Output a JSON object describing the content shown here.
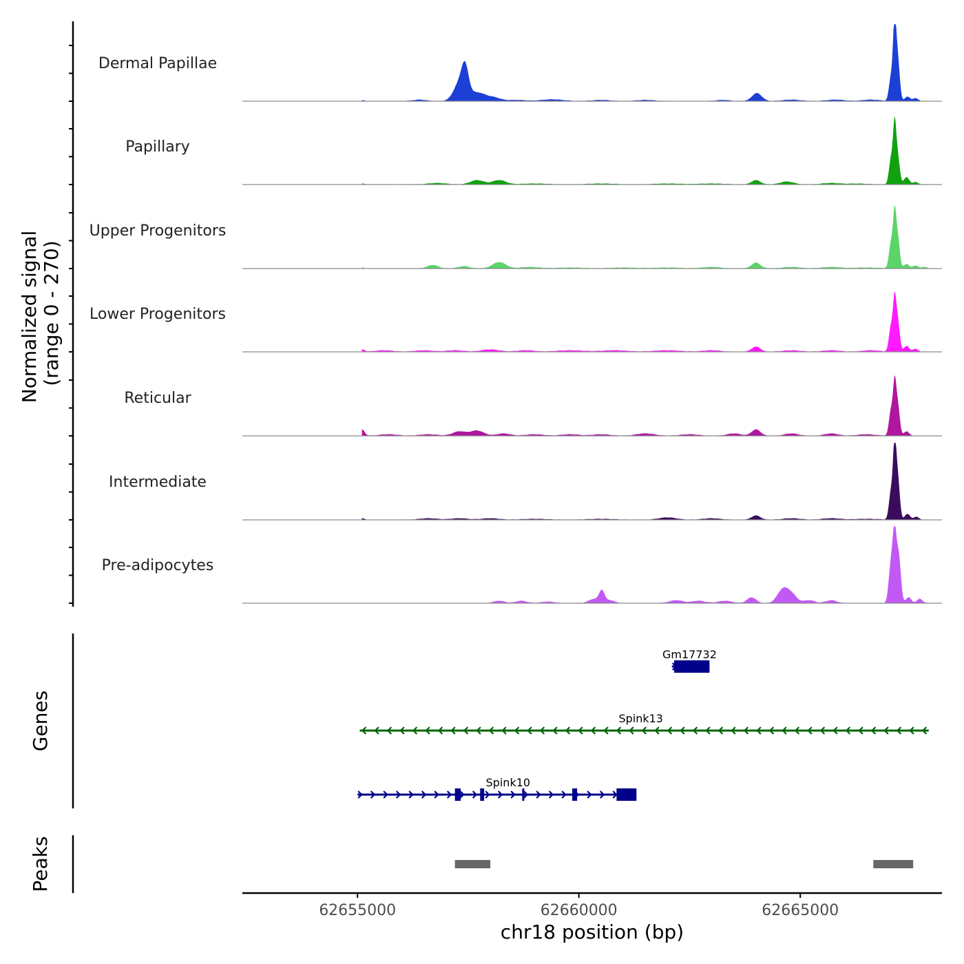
{
  "chart_data": {
    "type": "area",
    "title": "",
    "chromosome": "chr18",
    "xlabel": "chr18 position (bp)",
    "ylabel_line1": "Normalized signal",
    "ylabel_line2": "(range 0 - 270)",
    "xlim": [
      62652400,
      62668200
    ],
    "ylim": [
      0,
      270
    ],
    "x_ticks": [
      62655000,
      62660000,
      62665000
    ],
    "x_tick_labels": [
      "62655000",
      "62660000",
      "62665000"
    ],
    "tracks": [
      {
        "name": "Dermal Papillae",
        "color": "#1c3fd6",
        "peaks": [
          [
            62655100,
            3,
            60
          ],
          [
            62656400,
            5,
            150
          ],
          [
            62657300,
            60,
            130
          ],
          [
            62657430,
            90,
            80
          ],
          [
            62657700,
            30,
            200
          ],
          [
            62658100,
            10,
            150
          ],
          [
            62658600,
            4,
            200
          ],
          [
            62659400,
            6,
            250
          ],
          [
            62660500,
            4,
            200
          ],
          [
            62661500,
            4,
            200
          ],
          [
            62663250,
            4,
            150
          ],
          [
            62664020,
            28,
            110
          ],
          [
            62664800,
            5,
            200
          ],
          [
            62665800,
            5,
            200
          ],
          [
            62666600,
            5,
            200
          ],
          [
            62667050,
            85,
            45
          ],
          [
            62667130,
            250,
            35
          ],
          [
            62667200,
            150,
            45
          ],
          [
            62667420,
            15,
            60
          ],
          [
            62667600,
            10,
            60
          ]
        ]
      },
      {
        "name": "Papillary",
        "color": "#11a10e",
        "peaks": [
          [
            62655100,
            3,
            60
          ],
          [
            62656800,
            5,
            200
          ],
          [
            62657700,
            15,
            150
          ],
          [
            62658200,
            15,
            150
          ],
          [
            62659000,
            3,
            300
          ],
          [
            62660500,
            3,
            300
          ],
          [
            62662000,
            3,
            300
          ],
          [
            62663000,
            3,
            300
          ],
          [
            62664000,
            15,
            100
          ],
          [
            62664700,
            10,
            150
          ],
          [
            62665700,
            5,
            200
          ],
          [
            62666300,
            3,
            200
          ],
          [
            62667050,
            90,
            45
          ],
          [
            62667130,
            190,
            35
          ],
          [
            62667200,
            100,
            45
          ],
          [
            62667400,
            25,
            60
          ],
          [
            62667600,
            8,
            60
          ]
        ]
      },
      {
        "name": "Upper Progenitors",
        "color": "#5bd46a",
        "peaks": [
          [
            62655100,
            3,
            60
          ],
          [
            62656700,
            12,
            120
          ],
          [
            62657400,
            8,
            120
          ],
          [
            62658200,
            22,
            150
          ],
          [
            62658900,
            5,
            200
          ],
          [
            62659800,
            3,
            300
          ],
          [
            62661000,
            3,
            300
          ],
          [
            62662000,
            3,
            300
          ],
          [
            62663000,
            5,
            200
          ],
          [
            62664000,
            20,
            100
          ],
          [
            62664800,
            5,
            200
          ],
          [
            62665700,
            5,
            200
          ],
          [
            62666500,
            3,
            300
          ],
          [
            62667050,
            90,
            45
          ],
          [
            62667130,
            170,
            35
          ],
          [
            62667200,
            110,
            45
          ],
          [
            62667400,
            15,
            60
          ],
          [
            62667600,
            10,
            60
          ],
          [
            62667800,
            5,
            60
          ]
        ]
      },
      {
        "name": "Lower Progenitors",
        "color": "#ff1aff",
        "peaks": [
          [
            62655100,
            8,
            60
          ],
          [
            62655600,
            5,
            200
          ],
          [
            62656500,
            5,
            200
          ],
          [
            62657200,
            5,
            200
          ],
          [
            62658000,
            8,
            200
          ],
          [
            62658800,
            5,
            200
          ],
          [
            62659800,
            5,
            300
          ],
          [
            62660800,
            5,
            300
          ],
          [
            62662000,
            5,
            300
          ],
          [
            62663000,
            5,
            200
          ],
          [
            62664000,
            18,
            100
          ],
          [
            62664800,
            5,
            200
          ],
          [
            62665700,
            5,
            200
          ],
          [
            62666600,
            5,
            200
          ],
          [
            62667050,
            90,
            45
          ],
          [
            62667130,
            160,
            35
          ],
          [
            62667200,
            110,
            45
          ],
          [
            62667400,
            20,
            60
          ],
          [
            62667600,
            10,
            60
          ]
        ]
      },
      {
        "name": "Reticular",
        "color": "#b0169f",
        "peaks": [
          [
            62655100,
            22,
            60
          ],
          [
            62655700,
            5,
            200
          ],
          [
            62656600,
            5,
            200
          ],
          [
            62657300,
            15,
            150
          ],
          [
            62657700,
            18,
            150
          ],
          [
            62658300,
            8,
            150
          ],
          [
            62659000,
            5,
            200
          ],
          [
            62659800,
            5,
            200
          ],
          [
            62660500,
            5,
            200
          ],
          [
            62661500,
            8,
            200
          ],
          [
            62662500,
            5,
            200
          ],
          [
            62663500,
            8,
            150
          ],
          [
            62664000,
            22,
            100
          ],
          [
            62664800,
            8,
            150
          ],
          [
            62665700,
            8,
            150
          ],
          [
            62666500,
            5,
            200
          ],
          [
            62667050,
            90,
            45
          ],
          [
            62667130,
            160,
            35
          ],
          [
            62667200,
            110,
            45
          ],
          [
            62667400,
            15,
            60
          ]
        ]
      },
      {
        "name": "Intermediate",
        "color": "#3b0c5c",
        "peaks": [
          [
            62655100,
            5,
            60
          ],
          [
            62656600,
            5,
            200
          ],
          [
            62657300,
            5,
            200
          ],
          [
            62658000,
            5,
            200
          ],
          [
            62659000,
            3,
            300
          ],
          [
            62660500,
            3,
            300
          ],
          [
            62662000,
            8,
            200
          ],
          [
            62663000,
            5,
            200
          ],
          [
            62664000,
            15,
            100
          ],
          [
            62664800,
            5,
            200
          ],
          [
            62665700,
            5,
            200
          ],
          [
            62666500,
            3,
            300
          ],
          [
            62667050,
            100,
            45
          ],
          [
            62667130,
            240,
            35
          ],
          [
            62667200,
            150,
            45
          ],
          [
            62667420,
            20,
            60
          ],
          [
            62667620,
            10,
            60
          ]
        ]
      },
      {
        "name": "Pre-adipocytes",
        "color": "#c259f5",
        "peaks": [
          [
            62658200,
            8,
            120
          ],
          [
            62658700,
            8,
            120
          ],
          [
            62659300,
            5,
            150
          ],
          [
            62660350,
            15,
            120
          ],
          [
            62660520,
            40,
            60
          ],
          [
            62660700,
            10,
            100
          ],
          [
            62662200,
            10,
            150
          ],
          [
            62662700,
            8,
            150
          ],
          [
            62663300,
            8,
            150
          ],
          [
            62663900,
            20,
            100
          ],
          [
            62664600,
            45,
            120
          ],
          [
            62664800,
            30,
            120
          ],
          [
            62665200,
            10,
            120
          ],
          [
            62665700,
            10,
            120
          ],
          [
            62667050,
            140,
            50
          ],
          [
            62667130,
            210,
            40
          ],
          [
            62667220,
            170,
            50
          ],
          [
            62667450,
            20,
            60
          ],
          [
            62667700,
            15,
            60
          ]
        ]
      }
    ],
    "genes": [
      {
        "name": "Gm17732",
        "color": "#00008b",
        "strand": "+",
        "start": 62662100,
        "end": 62662950,
        "exons": [
          [
            62662150,
            62662950
          ]
        ]
      },
      {
        "name": "Spink13",
        "color": "#006400",
        "strand": "-",
        "start": 62655050,
        "end": 62667900,
        "exons": []
      },
      {
        "name": "Spink10",
        "color": "#00008b",
        "strand": "+",
        "start": 62655000,
        "end": 62661300,
        "exons": [
          [
            62657200,
            62657330
          ],
          [
            62657770,
            62657860
          ],
          [
            62658720,
            62658760
          ],
          [
            62659850,
            62659960
          ],
          [
            62660850,
            62661300
          ]
        ]
      }
    ],
    "peaks_track": [
      [
        62657200,
        62658000
      ],
      [
        62666650,
        62667550
      ]
    ],
    "panel_titles": {
      "genes": "Genes",
      "peaks": "Peaks"
    }
  }
}
